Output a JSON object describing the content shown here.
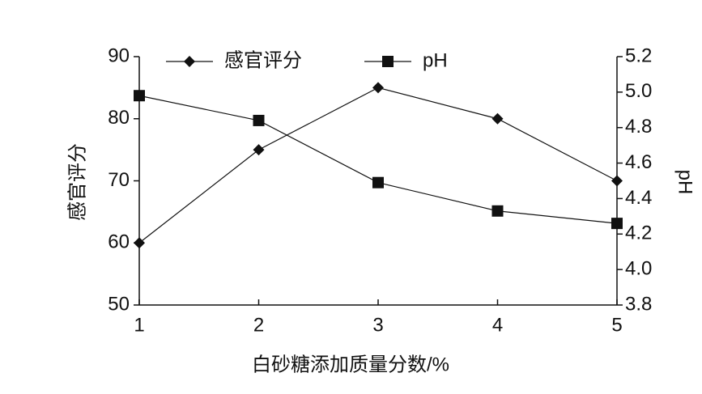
{
  "chart_data": {
    "type": "line",
    "x_label": "白砂糖添加质量分数/%",
    "y_label": "感官评分",
    "y2_label": "pH",
    "x": [
      1,
      2,
      3,
      4,
      5
    ],
    "xlim": [
      1,
      5
    ],
    "xticks": [
      1,
      2,
      3,
      4,
      5
    ],
    "ylim": [
      50,
      90
    ],
    "yticks": [
      50,
      60,
      70,
      80,
      90
    ],
    "y2lim": [
      3.8,
      5.2
    ],
    "y2ticks": [
      3.8,
      {
        "value": 4,
        "label": "4.0"
      },
      4.2,
      4.4,
      4.6,
      4.8,
      {
        "value": 5,
        "label": "5.0"
      },
      5.2
    ],
    "legend": "top",
    "series": [
      {
        "name": "感官评分",
        "color": "#111111",
        "marker": "diamond",
        "values": [
          60,
          75,
          85,
          80,
          70
        ]
      },
      {
        "name": "pH",
        "color": "#111111",
        "marker": "square",
        "axis": "y2",
        "values": [
          4.98,
          4.84,
          4.49,
          4.33,
          4.26
        ]
      }
    ]
  }
}
